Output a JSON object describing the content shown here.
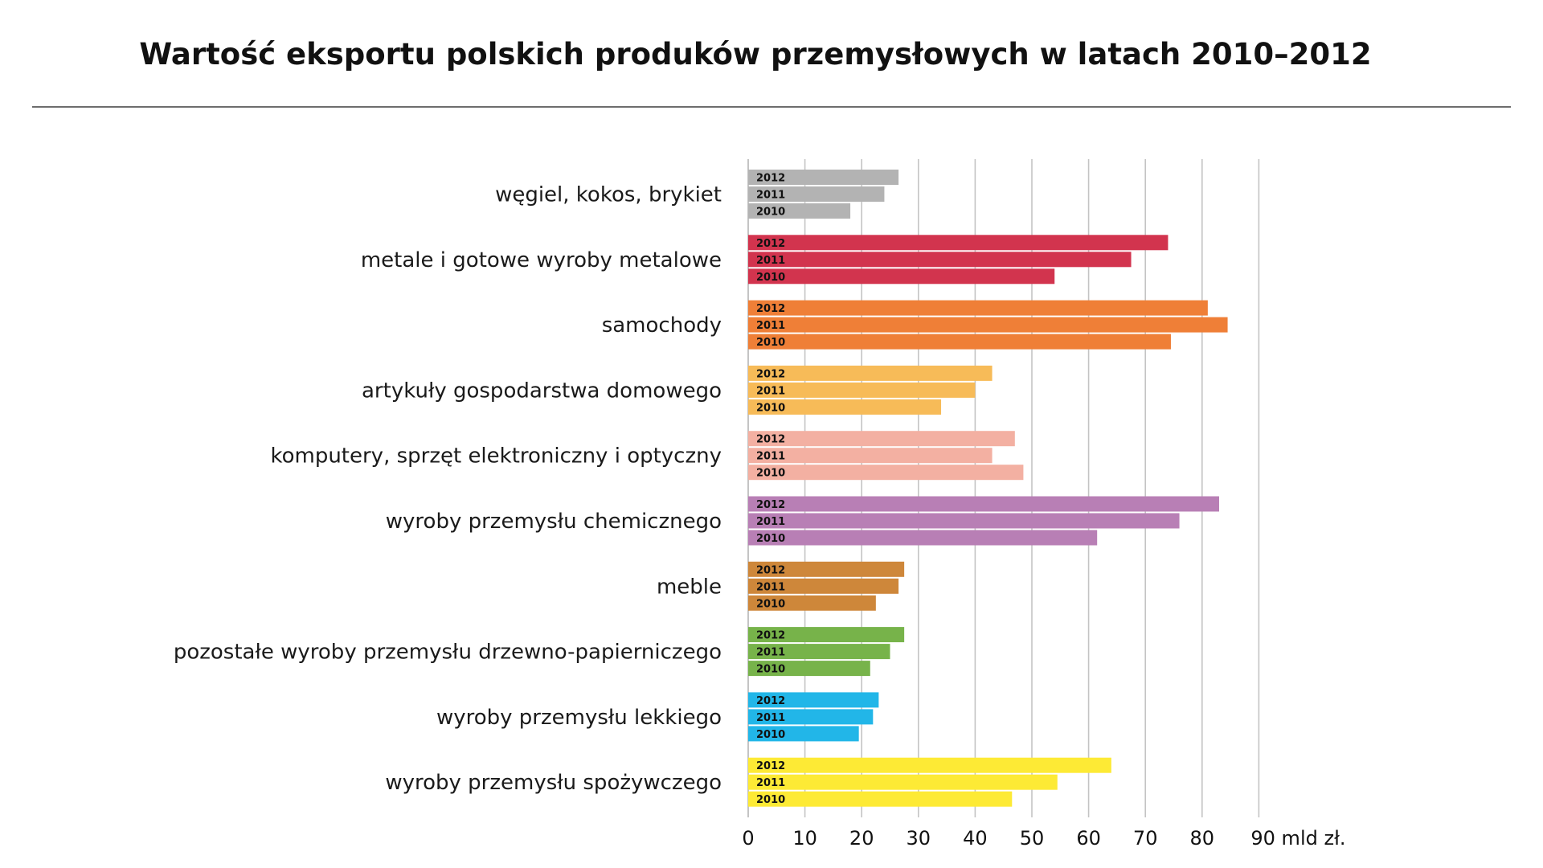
{
  "title": "Wartość eksportu polskich produków przemysłowych w latach 2010–2012",
  "chart_data": {
    "type": "bar",
    "orientation": "horizontal",
    "title": "Wartość eksportu polskich produków przemysłowych w latach 2010–2012",
    "xlabel": "mld zł.",
    "xlim": [
      0,
      90
    ],
    "xticks": [
      0,
      10,
      20,
      30,
      40,
      50,
      60,
      70,
      80,
      90
    ],
    "x_tick_labels": [
      "0",
      "10",
      "20",
      "30",
      "40",
      "50",
      "60",
      "70",
      "80",
      "90 mld zł."
    ],
    "grid": true,
    "years": [
      "2012",
      "2011",
      "2010"
    ],
    "categories": [
      {
        "name": "węgiel, kokos, brykiet",
        "color": "#b3b3b3",
        "values": {
          "2012": 26.5,
          "2011": 24,
          "2010": 18
        }
      },
      {
        "name": "metale i gotowe wyroby metalowe",
        "color": "#d2344e",
        "values": {
          "2012": 74,
          "2011": 67.5,
          "2010": 54
        }
      },
      {
        "name": "samochody",
        "color": "#ef7f37",
        "values": {
          "2012": 81,
          "2011": 84.5,
          "2010": 74.5
        }
      },
      {
        "name": "artykuły gospodarstwa domowego",
        "color": "#f7bb58",
        "values": {
          "2012": 43,
          "2011": 40,
          "2010": 34
        }
      },
      {
        "name": "komputery, sprzęt elektroniczny i optyczny",
        "color": "#f3b0a2",
        "values": {
          "2012": 47,
          "2011": 43,
          "2010": 48.5
        }
      },
      {
        "name": "wyroby przemysłu chemicznego",
        "color": "#b87fb5",
        "values": {
          "2012": 83,
          "2011": 76,
          "2010": 61.5
        }
      },
      {
        "name": "meble",
        "color": "#ce873a",
        "values": {
          "2012": 27.5,
          "2011": 26.5,
          "2010": 22.5
        }
      },
      {
        "name": "pozostałe wyroby przemysłu drzewno-papierniczego",
        "color": "#77b34a",
        "values": {
          "2012": 27.5,
          "2011": 25,
          "2010": 21.5
        }
      },
      {
        "name": "wyroby przemysłu lekkiego",
        "color": "#22b6e8",
        "values": {
          "2012": 23,
          "2011": 22,
          "2010": 19.5
        }
      },
      {
        "name": "wyroby przemysłu spożywczego",
        "color": "#fdea35",
        "values": {
          "2012": 64,
          "2011": 54.5,
          "2010": 46.5
        }
      }
    ]
  }
}
